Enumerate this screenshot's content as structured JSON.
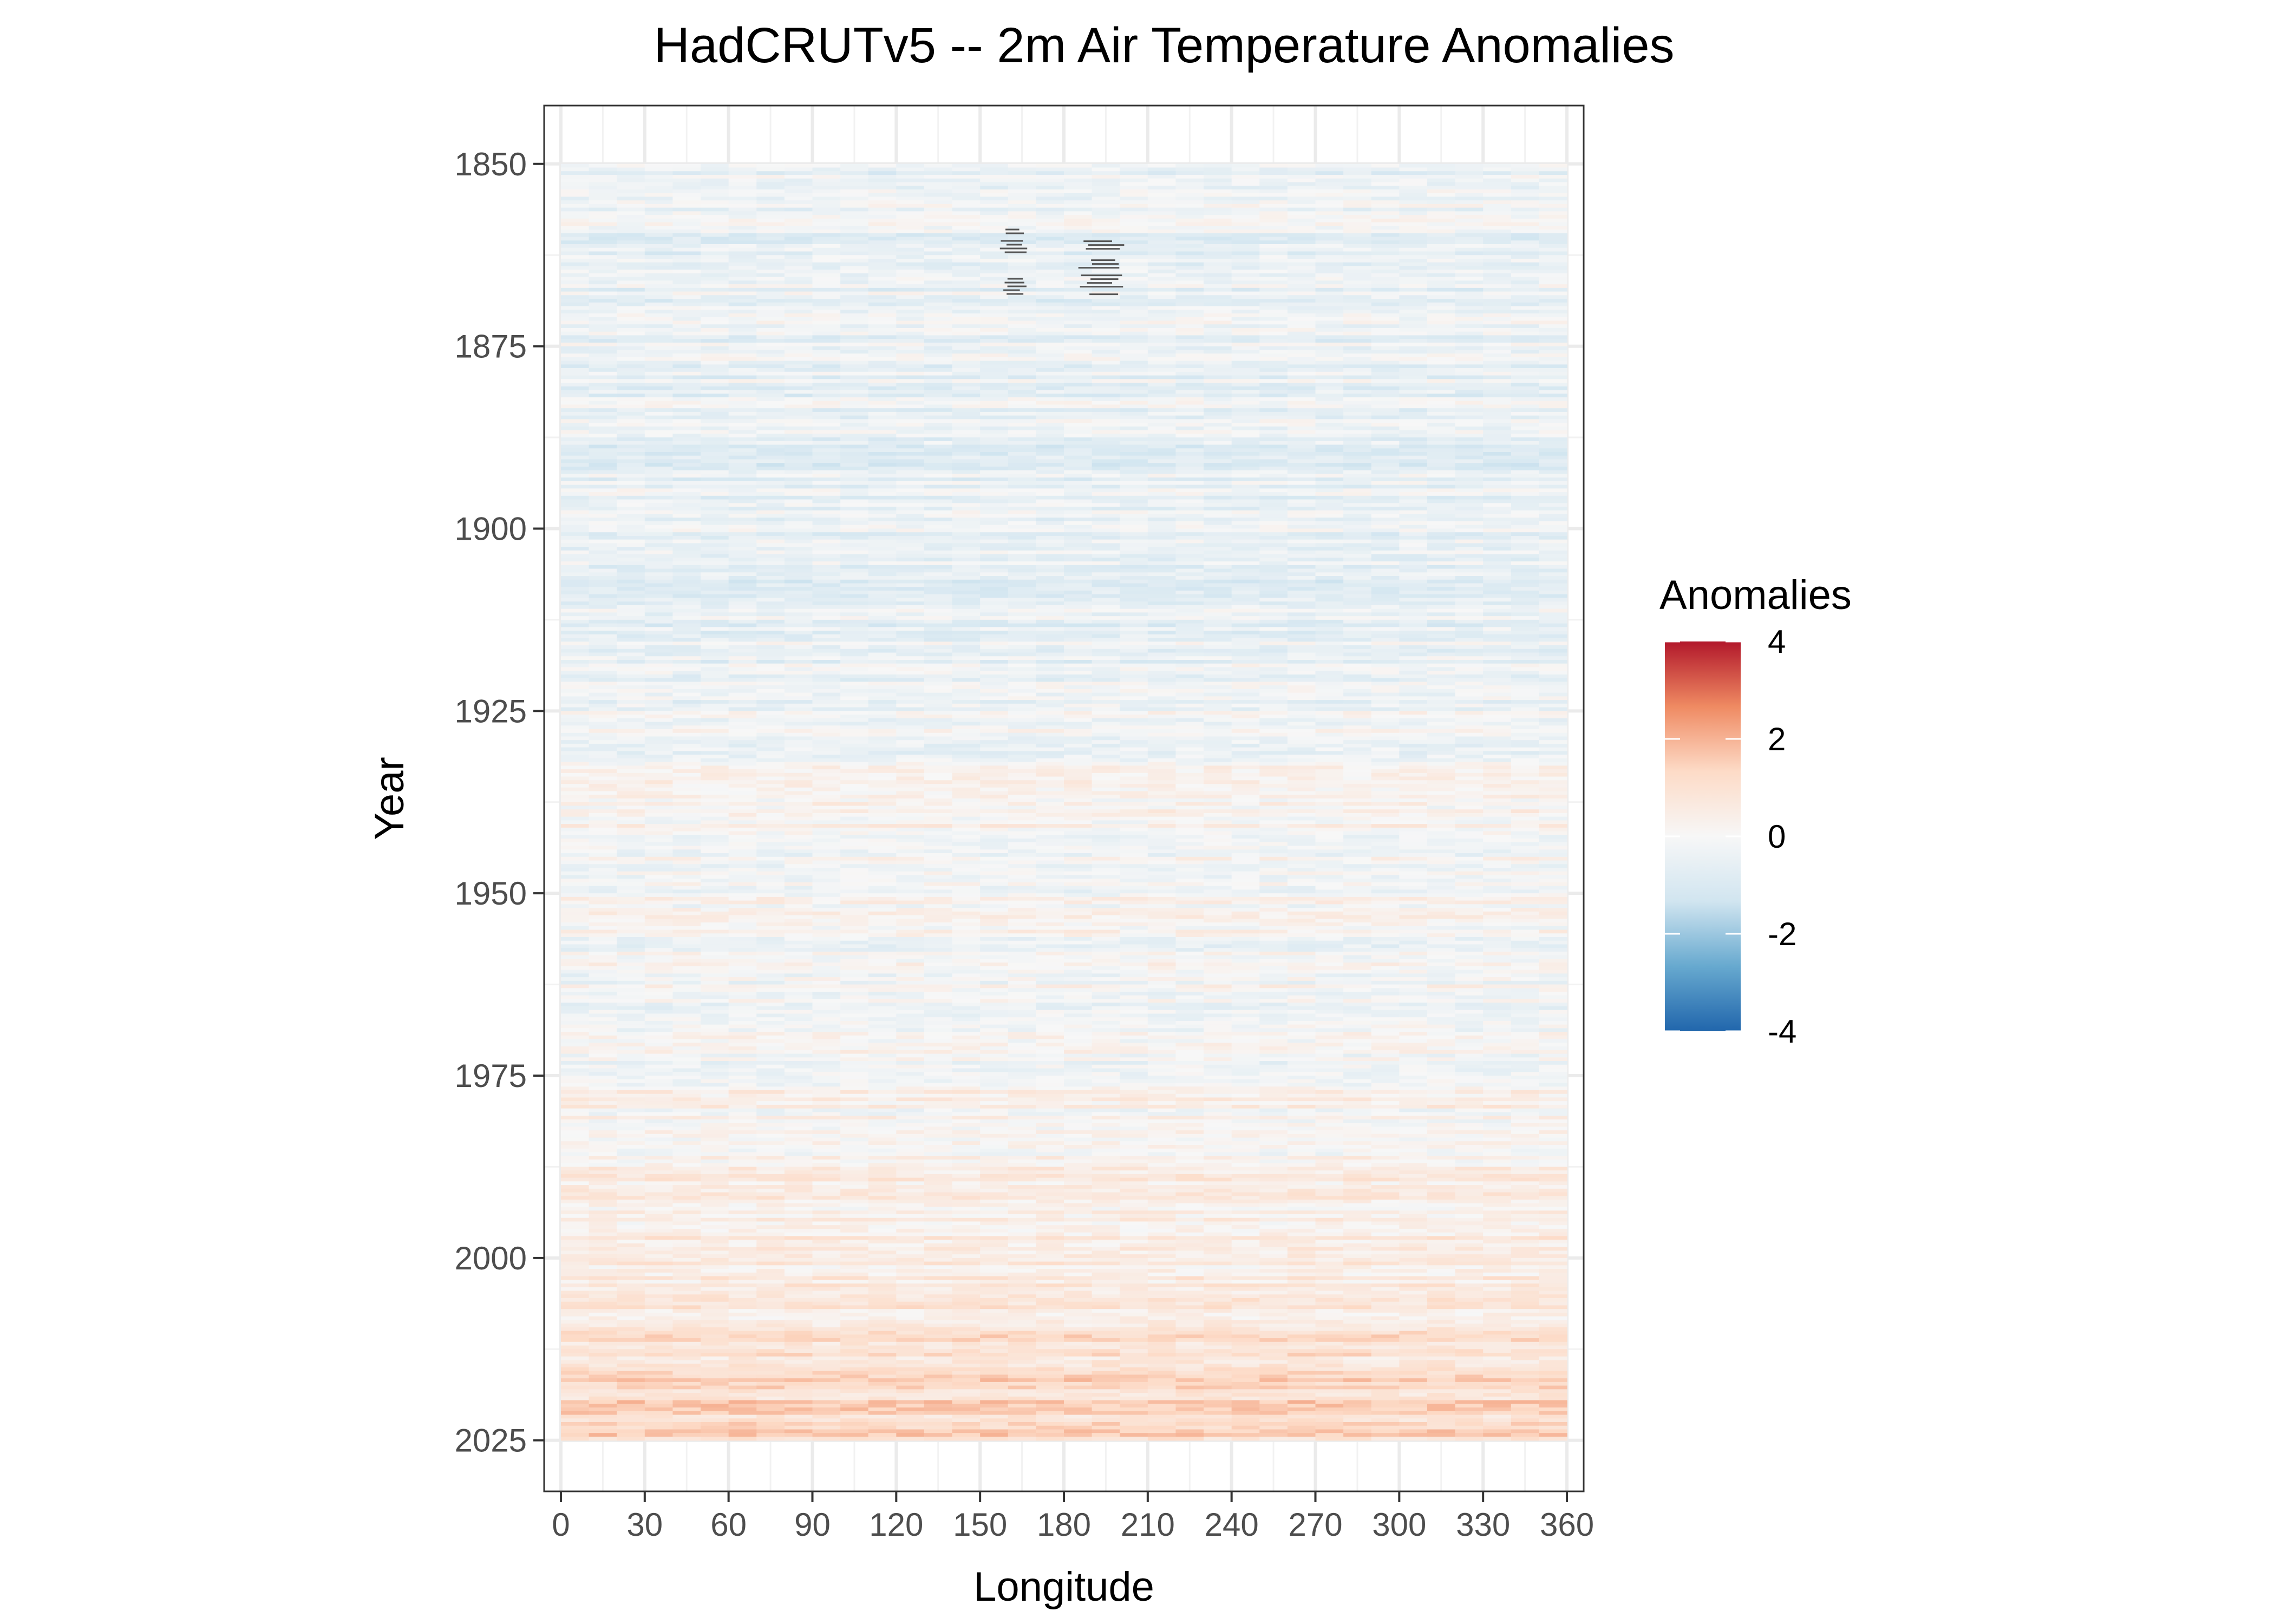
{
  "chart_data": {
    "type": "heatmap",
    "title": "HadCRUTv5 -- 2m Air Temperature Anomalies",
    "xlabel": "Longitude",
    "ylabel": "Year",
    "xlim": [
      -6,
      366
    ],
    "ylim": [
      1842,
      2032
    ],
    "data_extent": {
      "x": [
        0,
        360
      ],
      "y": [
        1850,
        2025
      ]
    },
    "x_ticks": [
      0,
      30,
      60,
      90,
      120,
      150,
      180,
      210,
      240,
      270,
      300,
      330,
      360
    ],
    "x_tick_labels": [
      "0",
      "30",
      "60",
      "90",
      "120",
      "150",
      "180",
      "210",
      "240",
      "270",
      "300",
      "330",
      "360"
    ],
    "y_ticks": [
      1850,
      1875,
      1900,
      1925,
      1950,
      1975,
      2000,
      2025
    ],
    "y_tick_labels": [
      "1850",
      "1875",
      "1900",
      "1925",
      "1950",
      "1975",
      "2000",
      "2025"
    ],
    "grid": true,
    "legend": {
      "title": "Anomalies",
      "position": "right",
      "range": [
        -4,
        4
      ],
      "breaks": [
        4,
        2,
        0,
        -2,
        -4
      ],
      "break_labels": [
        "4",
        "2",
        "0",
        "-2",
        "-4"
      ],
      "colors": [
        "#b2182b",
        "#ef8a62",
        "#fddbc7",
        "#f7f7f7",
        "#d1e5f0",
        "#67a9cf",
        "#2166ac"
      ]
    },
    "mean_anomaly_by_year": [
      {
        "year": 1850,
        "value": -0.35
      },
      {
        "year": 1860,
        "value": -0.45
      },
      {
        "year": 1870,
        "value": -0.4
      },
      {
        "year": 1880,
        "value": -0.45
      },
      {
        "year": 1890,
        "value": -0.55
      },
      {
        "year": 1900,
        "value": -0.5
      },
      {
        "year": 1910,
        "value": -0.55
      },
      {
        "year": 1920,
        "value": -0.35
      },
      {
        "year": 1930,
        "value": -0.1
      },
      {
        "year": 1940,
        "value": 0.15
      },
      {
        "year": 1950,
        "value": -0.1
      },
      {
        "year": 1960,
        "value": -0.05
      },
      {
        "year": 1970,
        "value": -0.05
      },
      {
        "year": 1980,
        "value": 0.2
      },
      {
        "year": 1990,
        "value": 0.4
      },
      {
        "year": 2000,
        "value": 0.6
      },
      {
        "year": 2010,
        "value": 0.85
      },
      {
        "year": 2015,
        "value": 1.1
      },
      {
        "year": 2020,
        "value": 1.2
      },
      {
        "year": 2025,
        "value": 1.3
      }
    ],
    "missing_value_regions": [
      {
        "lon": [
          157,
          167
        ],
        "years": [
          1859,
          1869
        ]
      },
      {
        "lon": [
          185,
          202
        ],
        "years": [
          1858,
          1868
        ]
      }
    ]
  }
}
